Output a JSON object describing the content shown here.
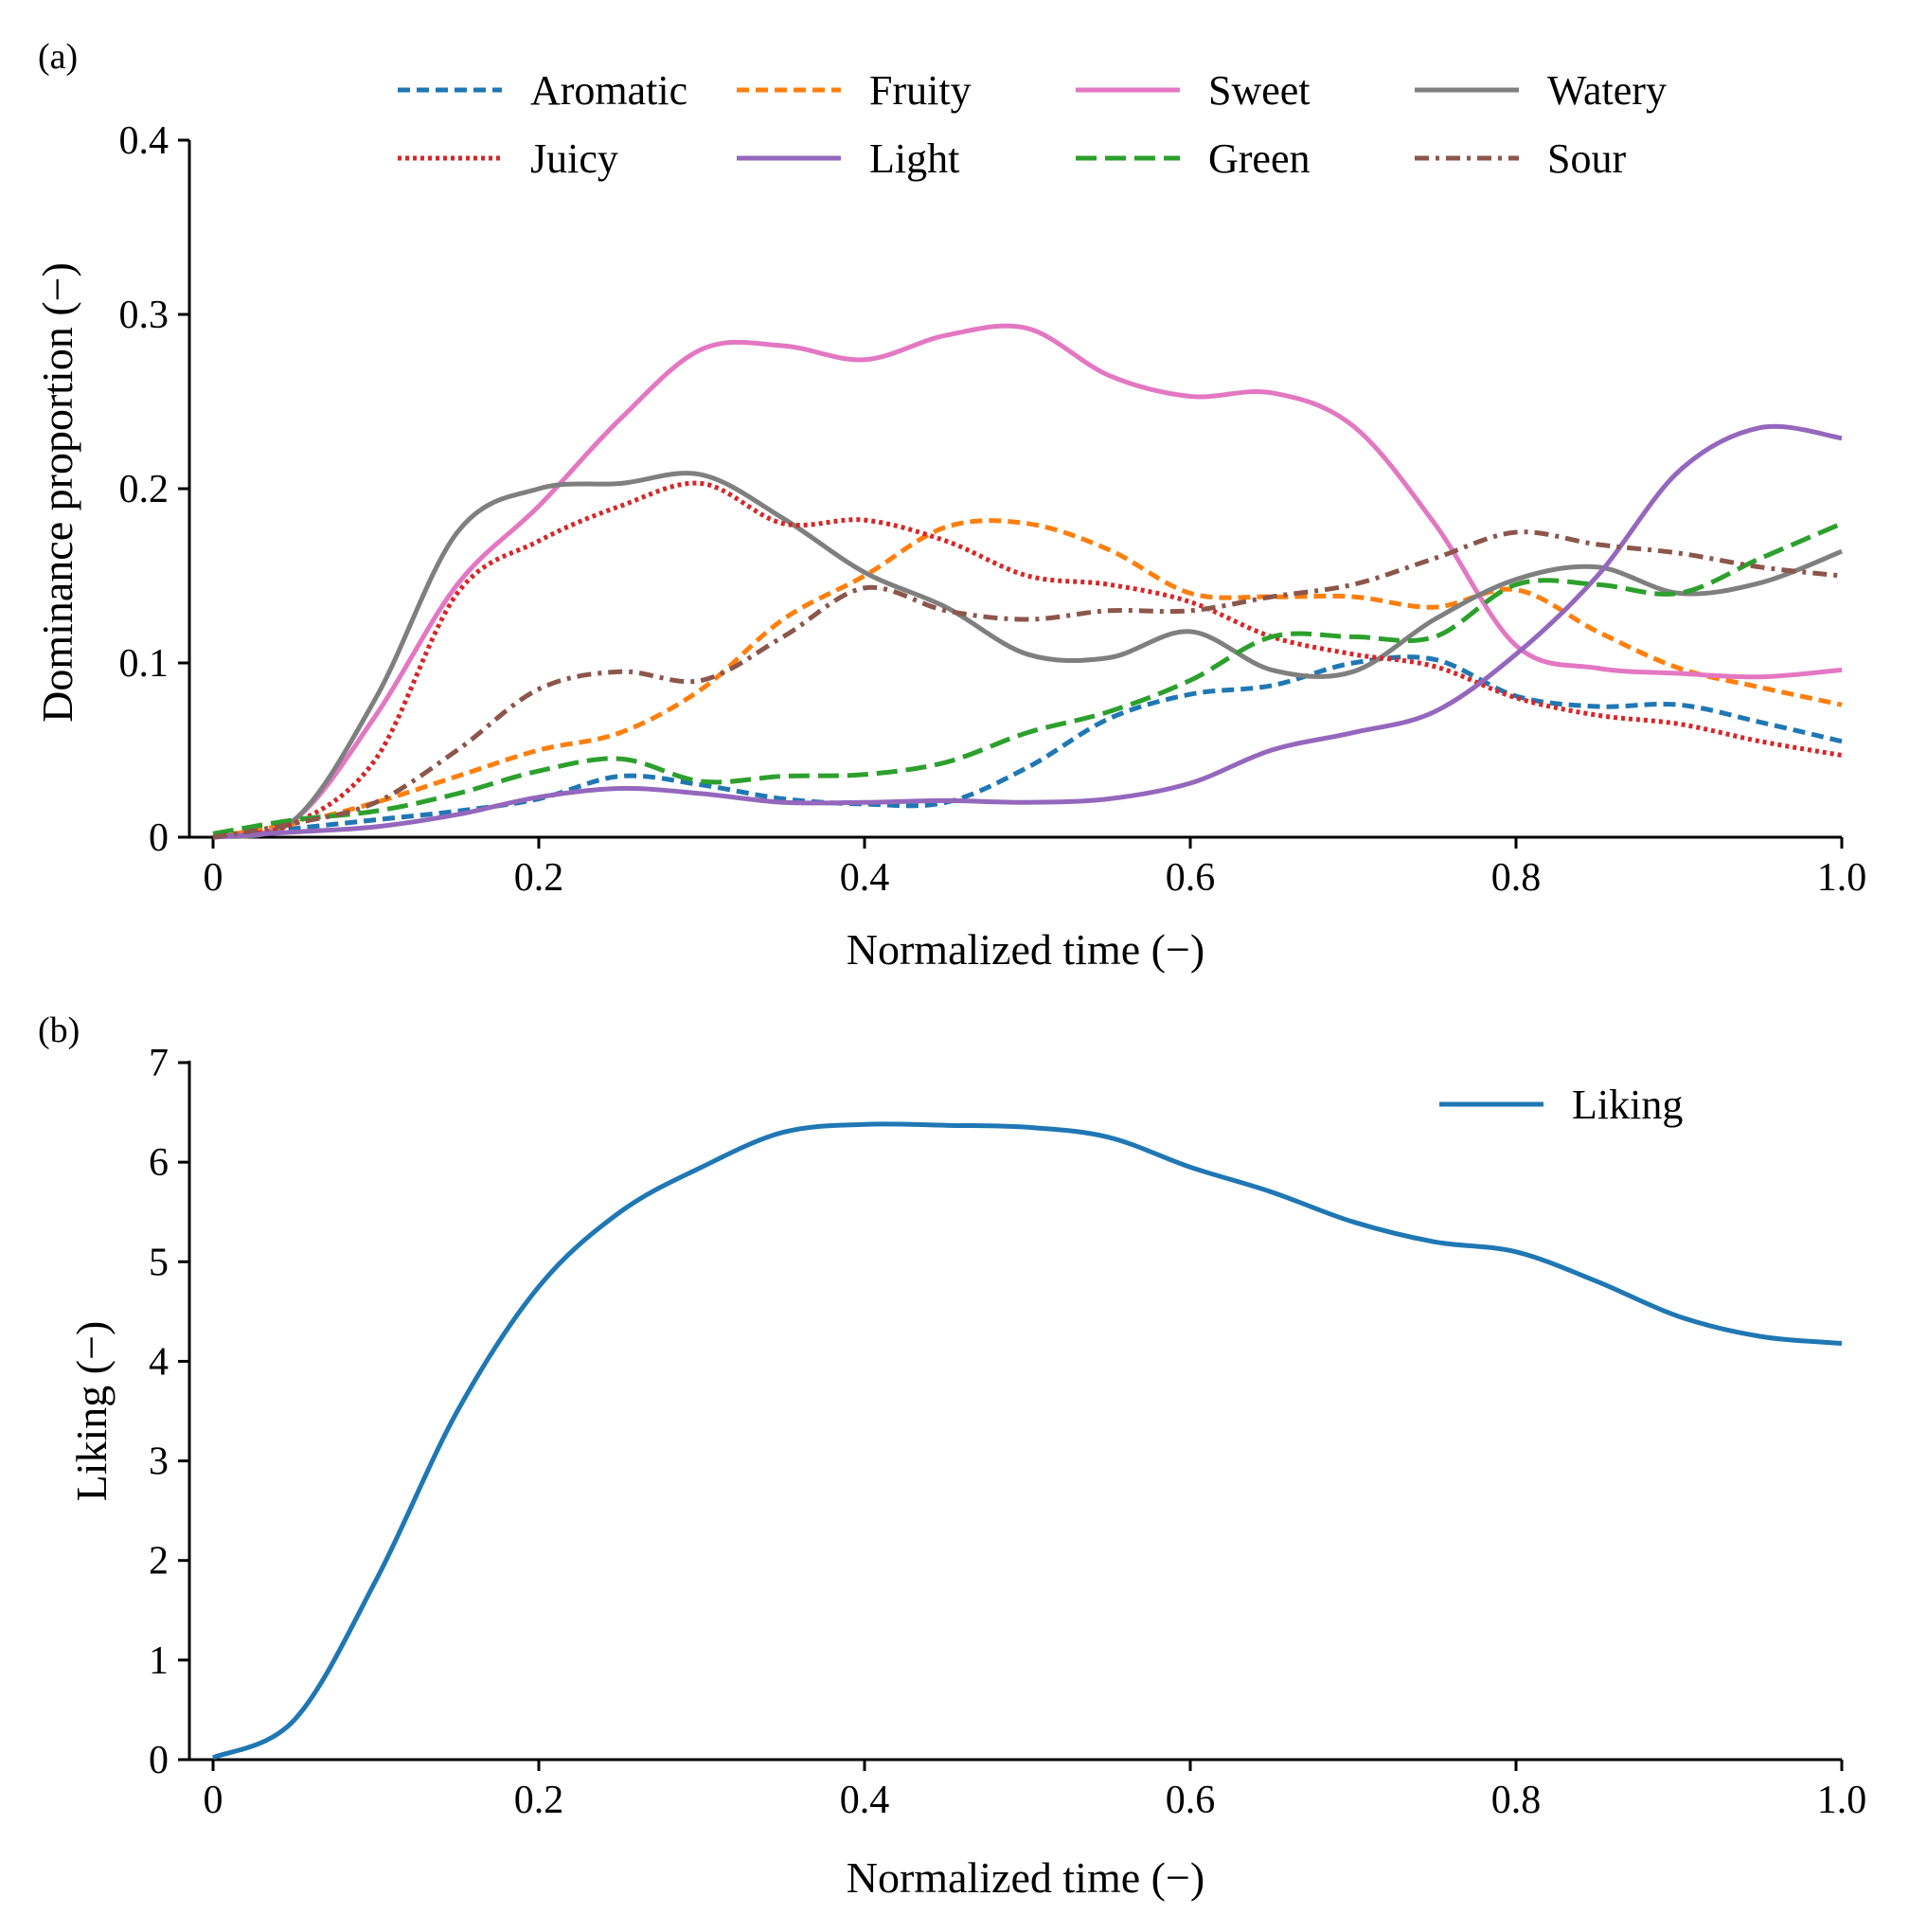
{
  "chart_data": [
    {
      "type": "line",
      "panel_label": "(a)",
      "xlabel": "Normalized time (−)",
      "ylabel": "Dominance proportion (−)",
      "xlim": [
        0,
        1.0
      ],
      "ylim": [
        0,
        0.4
      ],
      "xticks": [
        0,
        0.2,
        0.4,
        0.6,
        0.8,
        1.0
      ],
      "xtick_labels": [
        "0",
        "0.2",
        "0.4",
        "0.6",
        "0.8",
        "1.0"
      ],
      "yticks": [
        0,
        0.1,
        0.2,
        0.3,
        0.4
      ],
      "ytick_labels": [
        "0",
        "0.1",
        "0.2",
        "0.3",
        "0.4"
      ],
      "grid": false,
      "legend_position": "top, 4 columns",
      "x": [
        0,
        0.05,
        0.1,
        0.15,
        0.2,
        0.25,
        0.3,
        0.35,
        0.4,
        0.45,
        0.5,
        0.55,
        0.6,
        0.65,
        0.7,
        0.75,
        0.8,
        0.85,
        0.9,
        0.95,
        1.0
      ],
      "series": [
        {
          "name": "Aromatic",
          "color": "#1f77b4",
          "style": "dashed",
          "values": [
            0,
            0.005,
            0.01,
            0.015,
            0.022,
            0.035,
            0.03,
            0.022,
            0.019,
            0.02,
            0.04,
            0.068,
            0.082,
            0.087,
            0.1,
            0.102,
            0.081,
            0.075,
            0.076,
            0.066,
            0.055
          ]
        },
        {
          "name": "Fruity",
          "color": "#ff7f0e",
          "style": "dashed",
          "values": [
            0,
            0.008,
            0.02,
            0.035,
            0.05,
            0.06,
            0.085,
            0.125,
            0.15,
            0.178,
            0.18,
            0.165,
            0.14,
            0.138,
            0.138,
            0.132,
            0.142,
            0.118,
            0.097,
            0.086,
            0.076
          ]
        },
        {
          "name": "Sweet",
          "color": "#e377c2",
          "style": "solid",
          "values": [
            0,
            0.01,
            0.07,
            0.145,
            0.19,
            0.24,
            0.28,
            0.282,
            0.274,
            0.288,
            0.292,
            0.265,
            0.253,
            0.255,
            0.236,
            0.18,
            0.11,
            0.097,
            0.094,
            0.092,
            0.096
          ]
        },
        {
          "name": "Watery",
          "color": "#7f7f7f",
          "style": "solid",
          "values": [
            0,
            0.01,
            0.08,
            0.175,
            0.2,
            0.203,
            0.208,
            0.183,
            0.152,
            0.132,
            0.105,
            0.103,
            0.118,
            0.096,
            0.095,
            0.125,
            0.148,
            0.155,
            0.14,
            0.146,
            0.164
          ]
        },
        {
          "name": "Juicy",
          "color": "#d62728",
          "style": "dotted",
          "values": [
            0,
            0.008,
            0.045,
            0.14,
            0.17,
            0.19,
            0.203,
            0.18,
            0.182,
            0.17,
            0.15,
            0.145,
            0.135,
            0.115,
            0.105,
            0.098,
            0.08,
            0.07,
            0.065,
            0.055,
            0.047
          ]
        },
        {
          "name": "Light",
          "color": "#9467bd",
          "style": "solid",
          "values": [
            0,
            0.003,
            0.006,
            0.013,
            0.023,
            0.028,
            0.025,
            0.02,
            0.02,
            0.021,
            0.02,
            0.022,
            0.031,
            0.05,
            0.06,
            0.072,
            0.105,
            0.15,
            0.21,
            0.235,
            0.229
          ]
        },
        {
          "name": "Green",
          "color": "#2ca02c",
          "style": "longdash",
          "values": [
            0.002,
            0.01,
            0.015,
            0.025,
            0.038,
            0.045,
            0.032,
            0.035,
            0.036,
            0.043,
            0.06,
            0.072,
            0.09,
            0.115,
            0.115,
            0.115,
            0.145,
            0.145,
            0.14,
            0.16,
            0.18
          ]
        },
        {
          "name": "Sour",
          "color": "#8c564b",
          "style": "dashdot",
          "values": [
            0,
            0.008,
            0.02,
            0.05,
            0.085,
            0.095,
            0.09,
            0.115,
            0.143,
            0.13,
            0.125,
            0.13,
            0.13,
            0.138,
            0.145,
            0.16,
            0.175,
            0.168,
            0.163,
            0.155,
            0.15
          ]
        }
      ]
    },
    {
      "type": "line",
      "panel_label": "(b)",
      "xlabel": "Normalized time (−)",
      "ylabel": "Liking (−)",
      "xlim": [
        0,
        1.0
      ],
      "ylim": [
        0,
        7
      ],
      "xticks": [
        0,
        0.2,
        0.4,
        0.6,
        0.8,
        1.0
      ],
      "xtick_labels": [
        "0",
        "0.2",
        "0.4",
        "0.6",
        "0.8",
        "1.0"
      ],
      "yticks": [
        0,
        1,
        2,
        3,
        4,
        5,
        6,
        7
      ],
      "ytick_labels": [
        "0",
        "1",
        "2",
        "3",
        "4",
        "5",
        "6",
        "7"
      ],
      "grid": false,
      "legend_position": "top-right",
      "x": [
        0,
        0.05,
        0.1,
        0.15,
        0.2,
        0.25,
        0.3,
        0.35,
        0.4,
        0.45,
        0.5,
        0.55,
        0.6,
        0.65,
        0.7,
        0.75,
        0.8,
        0.85,
        0.9,
        0.95,
        1.0
      ],
      "series": [
        {
          "name": "Liking",
          "color": "#1f77b4",
          "style": "solid",
          "values": [
            0.02,
            0.4,
            1.8,
            3.5,
            4.75,
            5.5,
            5.95,
            6.3,
            6.38,
            6.37,
            6.35,
            6.25,
            5.95,
            5.7,
            5.4,
            5.2,
            5.1,
            4.8,
            4.45,
            4.25,
            4.18
          ]
        }
      ]
    }
  ]
}
